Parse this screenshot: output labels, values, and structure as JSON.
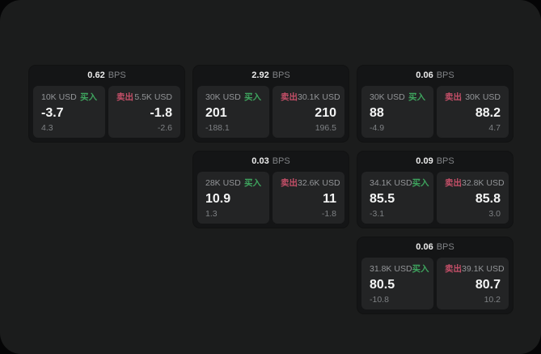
{
  "labels": {
    "bps_unit": "BPS",
    "buy": "买入",
    "sell": "卖出"
  },
  "colors": {
    "buy_green": "#3ea45e",
    "sell_red": "#c44f68",
    "panel_background": "#1b1c1c",
    "card_background": "#141516",
    "tile_background": "#232425"
  },
  "cards": [
    {
      "bps": "0.62",
      "buy_amount": "10K USD",
      "buy_value": "-3.7",
      "buy_delta": "4.3",
      "sell_amount": "5.5K USD",
      "sell_value": "-1.8",
      "sell_delta": "-2.6"
    },
    {
      "bps": "2.92",
      "buy_amount": "30K USD",
      "buy_value": "201",
      "buy_delta": "-188.1",
      "sell_amount": "30.1K USD",
      "sell_value": "210",
      "sell_delta": "196.5"
    },
    {
      "bps": "0.06",
      "buy_amount": "30K USD",
      "buy_value": "88",
      "buy_delta": "-4.9",
      "sell_amount": "30K USD",
      "sell_value": "88.2",
      "sell_delta": "4.7"
    },
    {
      "bps": "0.03",
      "buy_amount": "28K USD",
      "buy_value": "10.9",
      "buy_delta": "1.3",
      "sell_amount": "32.6K USD",
      "sell_value": "11",
      "sell_delta": "-1.8"
    },
    {
      "bps": "0.09",
      "buy_amount": "34.1K USD",
      "buy_value": "85.5",
      "buy_delta": "-3.1",
      "sell_amount": "32.8K USD",
      "sell_value": "85.8",
      "sell_delta": "3.0"
    },
    {
      "bps": "0.06",
      "buy_amount": "31.8K USD",
      "buy_value": "80.5",
      "buy_delta": "-10.8",
      "sell_amount": "39.1K USD",
      "sell_value": "80.7",
      "sell_delta": "10.2"
    }
  ]
}
